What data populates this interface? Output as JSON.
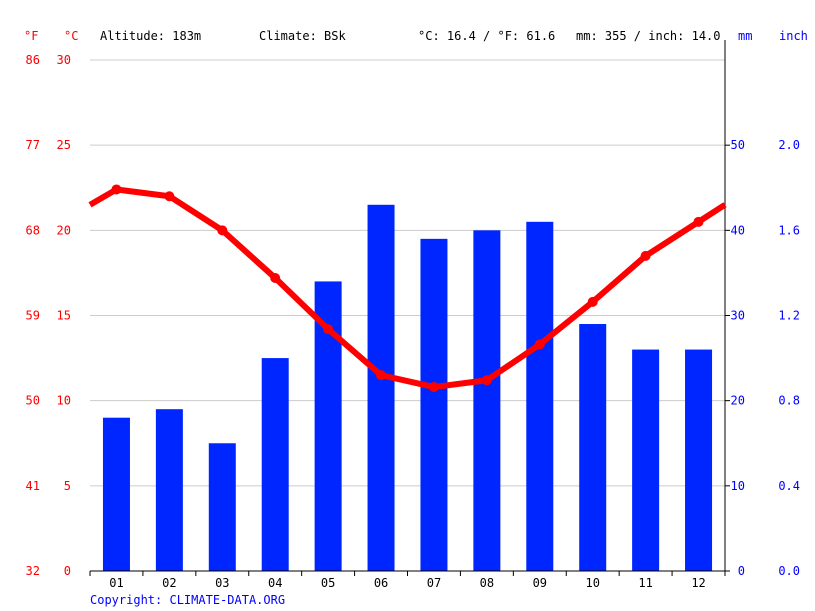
{
  "header": {
    "unit_f": "°F",
    "unit_c": "°C",
    "altitude": "Altitude: 183m",
    "climate": "Climate: BSk",
    "temp_avg": "°C: 16.4 / °F: 61.6",
    "precip_total": "mm: 355 / inch: 14.0",
    "unit_mm": "mm",
    "unit_inch": "inch"
  },
  "copyright": "Copyright: CLIMATE-DATA.ORG",
  "colors": {
    "temperature": "#ff0000",
    "precipitation": "#0026ff",
    "grid": "#cccccc",
    "axis": "#000000",
    "left_axis_text": "#ff0000",
    "right_axis_text": "#0000ff"
  },
  "chart_data": {
    "type": "bar",
    "categories": [
      "01",
      "02",
      "03",
      "04",
      "05",
      "06",
      "07",
      "08",
      "09",
      "10",
      "11",
      "12"
    ],
    "series": [
      {
        "type": "bar",
        "axis": "right",
        "values": [
          18,
          19,
          15,
          25,
          34,
          43,
          39,
          40,
          41,
          29,
          26,
          26
        ]
      },
      {
        "type": "line",
        "axis": "left",
        "values": [
          22.4,
          22.0,
          20.0,
          17.2,
          14.2,
          11.5,
          10.8,
          11.2,
          13.3,
          15.8,
          18.5,
          20.5
        ],
        "edge_values": [
          21.5,
          21.5
        ]
      }
    ],
    "axes": {
      "left_c": {
        "ticks": [
          "0",
          "5",
          "10",
          "15",
          "20",
          "25",
          "30"
        ],
        "range": [
          0,
          30
        ]
      },
      "left_f": {
        "ticks": [
          "32",
          "41",
          "50",
          "59",
          "68",
          "77",
          "86"
        ]
      },
      "right_mm": {
        "ticks": [
          "0",
          "10",
          "20",
          "30",
          "40",
          "50"
        ],
        "range": [
          0,
          60
        ]
      },
      "right_inch": {
        "ticks": [
          "0.0",
          "0.4",
          "0.8",
          "1.2",
          "1.6",
          "2.0"
        ]
      }
    },
    "grid": true
  }
}
